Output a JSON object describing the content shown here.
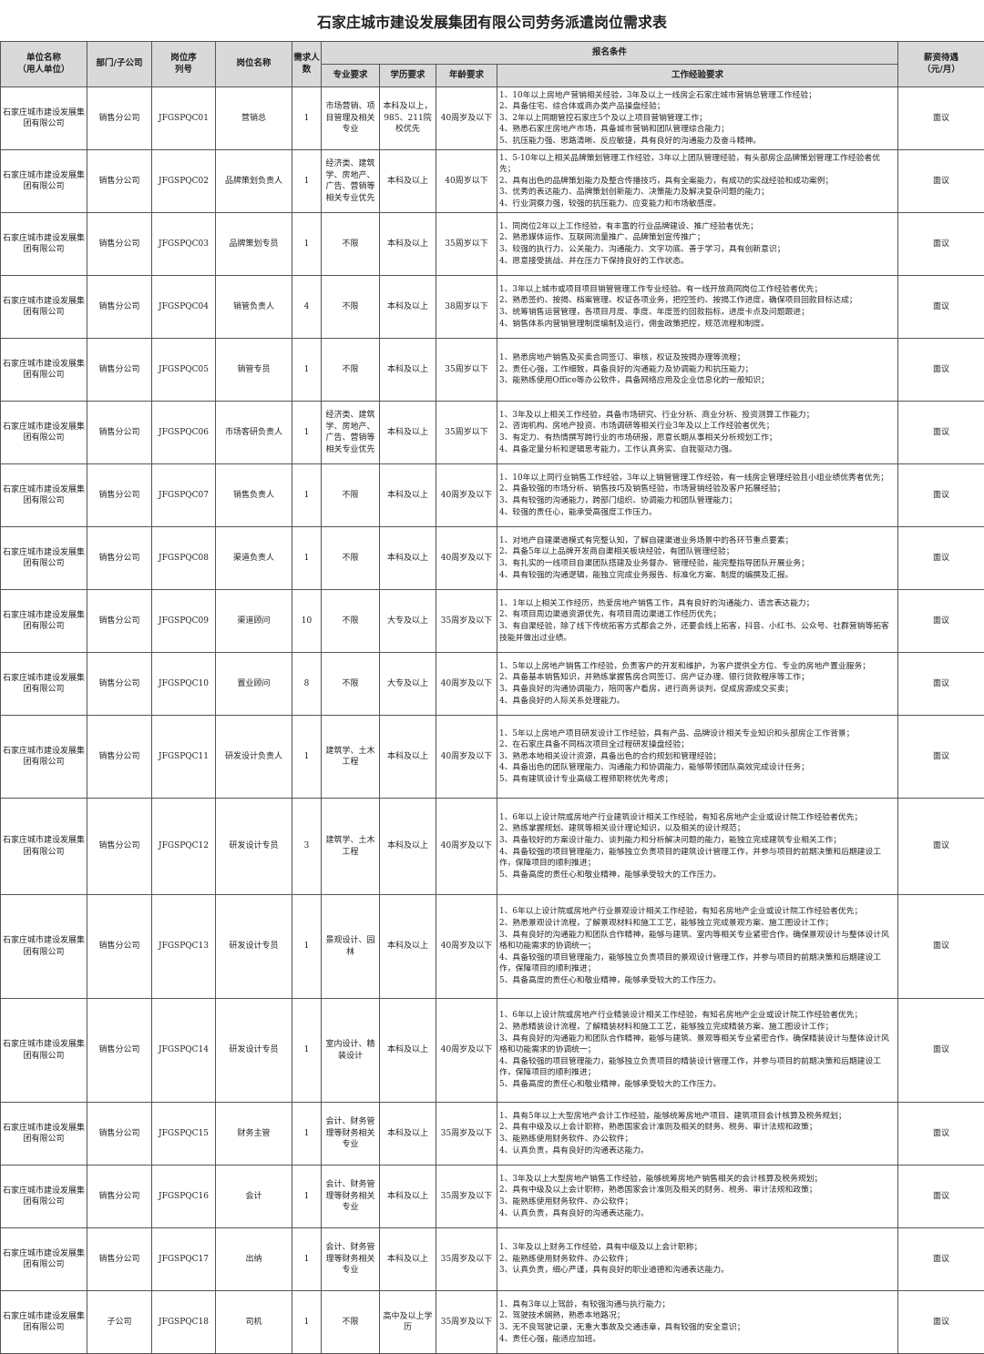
{
  "title": "石家庄城市建设发展集团有限公司劳务派遣岗位需求表",
  "headers": {
    "unit": "单位名称\n（用人单位）",
    "dept": "部门/子公司",
    "code": "岗位序\n列号",
    "position": "岗位名称",
    "count": "需求人\n数",
    "conditions": "报名条件",
    "major": "专业要求",
    "edu": "学历要求",
    "age": "年龄要求",
    "exp": "工作经验要求",
    "salary": "薪资待遇\n（元/月）"
  },
  "rows": [
    {
      "unit": "石家庄城市建设发展集团有限公司",
      "dept": "销售分公司",
      "code": "JFGSPQC01",
      "position": "营销总",
      "count": "1",
      "major": "市场营销、项目管理及相关专业",
      "edu": "本科及以上，985、211院校优先",
      "age": "40周岁及以下",
      "salary": "面议",
      "exp": [
        "1、10年以上房地产营销相关经验，3年及以上一线房企石家庄城市营销总管理工作经验；",
        "2、具备住宅、综合体或商办类产品操盘经验；",
        "3、2年以上同期管控石家庄5个及以上项目营销管理工作；",
        "4、熟悉石家庄房地产市场，具备城市营销和团队管理综合能力；",
        "5、抗压能力强、思路清晰、反应敏捷，具有良好的沟通能力及奋斗精神。"
      ]
    },
    {
      "unit": "石家庄城市建设发展集团有限公司",
      "dept": "销售分公司",
      "code": "JFGSPQC02",
      "position": "品牌策划负责人",
      "count": "1",
      "major": "经济类、建筑学、房地产、广告、营销等相关专业优先",
      "edu": "本科及以上",
      "age": "40周岁以下",
      "salary": "面议",
      "exp": [
        "1、5-10年以上相关品牌策划管理工作经验，3年以上团队管理经验，有头部房企品牌策划管理工作经验者优先；",
        "2、具有出色的品牌策划能力及整合传播技巧，具有全案能力，有成功的实战经验和成功案例；",
        "3、优秀的表达能力、品牌策划创新能力、决策能力及解决复杂问题的能力；",
        "4、行业洞察力强，较强的抗压能力、应变能力和市场敏感度。"
      ]
    },
    {
      "unit": "石家庄城市建设发展集团有限公司",
      "dept": "销售分公司",
      "code": "JFGSPQC03",
      "position": "品牌策划专员",
      "count": "1",
      "major": "不限",
      "edu": "本科及以上",
      "age": "35周岁以下",
      "salary": "面议",
      "exp": [
        "1、同岗位2年以上工作经验，有丰富的行业品牌建设、推广经验者优先；",
        "2、熟悉媒体运作、互联网流量推广、品牌策划宣传推广；",
        "3、较强的执行力、公关能力、沟通能力、文字功底、善于学习，具有创新意识；",
        "4、愿意接受挑战、并在压力下保持良好的工作状态。"
      ]
    },
    {
      "unit": "石家庄城市建设发展集团有限公司",
      "dept": "销售分公司",
      "code": "JFGSPQC04",
      "position": "销管负责人",
      "count": "4",
      "major": "不限",
      "edu": "本科及以上",
      "age": "38周岁以下",
      "salary": "面议",
      "exp": [
        "1、3年以上城市或项目项目销管管理工作专业经验。有一线开放商同岗位工作经验者优先；",
        "2、熟悉签约、按揭、档案管理、权证各项业务，把控签约、按揭工作进度，确保项目回款目标达成；",
        "3、统筹销售运营管理，各项目月度、季度、年度签约回款指标，进度卡点及问题跟进；",
        "4、销售体系内营销管理制度编制及运行，佣金政策把控，规范流程和制度。"
      ]
    },
    {
      "unit": "石家庄城市建设发展集团有限公司",
      "dept": "销售分公司",
      "code": "JFGSPQC05",
      "position": "销管专员",
      "count": "1",
      "major": "不限",
      "edu": "本科及以上",
      "age": "35周岁以下",
      "salary": "面议",
      "exp": [
        "1、熟悉房地产销售及买卖合同签订、审核，权证及按揭办理等流程；",
        "2、责任心强，工作细致，具备良好的沟通能力及协调能力和抗压能力；",
        "3、能熟练使用Office等办公软件，具备网络应用及企业信息化的一般知识；"
      ]
    },
    {
      "unit": "石家庄城市建设发展集团有限公司",
      "dept": "销售分公司",
      "code": "JFGSPQC06",
      "position": "市场客研负责人",
      "count": "1",
      "major": "经济类、建筑学、房地产、广告、营销等相关专业优先",
      "edu": "本科及以上",
      "age": "35周岁以下",
      "salary": "面议",
      "exp": [
        "1、3年及以上相关工作经验，具备市场研究、行业分析、商业分析、投资测算工作能力；",
        "2、咨询机构、房地产投资、市场调研等相关行业3年及以上工作经验者优先；",
        "3、有定力、有热情撰写跨行业的市场研报，愿意长期从事相关分析规划工作；",
        "4、具备定量分析和逻辑思考能力，工作认真务实、自我驱动力强。"
      ]
    },
    {
      "unit": "石家庄城市建设发展集团有限公司",
      "dept": "销售分公司",
      "code": "JFGSPQC07",
      "position": "销售负责人",
      "count": "1",
      "major": "不限",
      "edu": "本科及以上",
      "age": "40周岁及以下",
      "salary": "面议",
      "exp": [
        "1、10年以上同行业销售工作经验，3年以上销管管理工作经验，有一线房企管理经验且小组业绩优秀者优先；",
        "2、具备较强的市场分析、销售技巧及销售经验，市场营销经验及客户拓展经验；",
        "3、具有较强的沟通能力，跨部门组织、协调能力和团队管理能力；",
        "4、较强的责任心，能承受高强度工作压力。"
      ]
    },
    {
      "unit": "石家庄城市建设发展集团有限公司",
      "dept": "销售分公司",
      "code": "JFGSPQC08",
      "position": "渠道负责人",
      "count": "1",
      "major": "不限",
      "edu": "本科及以上",
      "age": "40周岁及以下",
      "salary": "面议",
      "exp": [
        "1、对地产自建渠道模式有完整认知，了解自建渠道业务场景中的各环节重点要素；",
        "2、具备5年以上品牌开发商自渠相关板块经验，有团队管理经验；",
        "3、有扎实的一线项目自渠团队搭建及业务督办、管理经验，能完整指导团队开展业务；",
        "4、具有较强的沟通逻辑，能独立完成业务报告、标准化方案、制度的编撰及汇报。"
      ]
    },
    {
      "unit": "石家庄城市建设发展集团有限公司",
      "dept": "销售分公司",
      "code": "JFGSPQC09",
      "position": "渠道顾问",
      "count": "10",
      "major": "不限",
      "edu": "大专及以上",
      "age": "35周岁及以下",
      "salary": "面议",
      "exp": [
        "1、1年以上相关工作经历，热爱房地产销售工作，具有良好的沟通能力、语言表达能力；",
        "2、有项目周边渠道资源优先，有项目周边渠道工作经历优先；",
        "3、有自渠经验，除了线下传统拓客方式都会之外，还要会线上拓客，抖音、小红书、公众号、社群营销等拓客技能并做出过业绩。"
      ]
    },
    {
      "unit": "石家庄城市建设发展集团有限公司",
      "dept": "销售分公司",
      "code": "JFGSPQC10",
      "position": "置业顾问",
      "count": "8",
      "major": "不限",
      "edu": "大专及以上",
      "age": "40周岁及以下",
      "salary": "面议",
      "exp": [
        "1、5年以上房地产销售工作经验，负责客户的开发和维护，为客户提供全方位、专业的房地产置业服务；",
        "2、具备基本销售知识，并熟练掌握售房合同签订、房产证办理、银行贷款程序等工作；",
        "3、具备良好的沟通协调能力，陪同客户看房，进行商务谈判，促成房源成交买卖；",
        "4、具备良好的人际关系处理能力。"
      ]
    },
    {
      "unit": "石家庄城市建设发展集团有限公司",
      "dept": "销售分公司",
      "code": "JFGSPQC11",
      "position": "研发设计负责人",
      "count": "1",
      "major": "建筑学、土木工程",
      "edu": "本科及以上",
      "age": "40周岁及以下",
      "salary": "面议",
      "exp": [
        "1、5年以上房地产项目研发设计工作经验，具有产品、品牌设计相关专业知识和头部房企工作背景；",
        "2、在石家庄具备不同档次项目全过程研发操盘经验；",
        "3、熟悉本地相关设计资源，具备出色的合约规划和管理经验；",
        "4、具备出色的团队管理能力、沟通能力和协调能力，能够带领团队高效完成设计任务；",
        "5、具有建筑设计专业高级工程师职称优先考虑；"
      ]
    },
    {
      "unit": "石家庄城市建设发展集团有限公司",
      "dept": "销售分公司",
      "code": "JFGSPQC12",
      "position": "研发设计专员",
      "count": "3",
      "major": "建筑学、土木工程",
      "edu": "本科及以上",
      "age": "40周岁及以下",
      "salary": "面议",
      "exp": [
        "1、6年以上设计院或房地产行业建筑设计相关工作经验，有知名房地产企业或设计院工作经验者优先；",
        "2、熟练掌握规划、建筑等相关设计理论知识，以及相关的设计规范；",
        "3、具备较好的方案设计能力、谈判能力和分析解决问题的能力，能独立完成建筑专业相关工作；",
        "4、具备较强的项目管理能力，能够独立负责项目的建筑设计管理工作，并参与项目的前期决策和后期建设工作，保障项目的顺利推进；",
        "5、具备高度的责任心和敬业精神，能够承受较大的工作压力。"
      ]
    },
    {
      "unit": "石家庄城市建设发展集团有限公司",
      "dept": "销售分公司",
      "code": "JFGSPQC13",
      "position": "研发设计专员",
      "count": "1",
      "major": "景观设计、园林",
      "edu": "本科及以上",
      "age": "40周岁及以下",
      "salary": "面议",
      "exp": [
        "1、6年以上设计院或房地产行业景观设计相关工作经验，有知名房地产企业或设计院工作经验者优先；",
        "2、熟悉景观设计流程，了解景观材料和施工工艺，能够独立完成景观方案、施工图设计工作；",
        "3、具有良好的沟通能力和团队合作精神，能够与建筑、室内等相关专业紧密合作，确保景观设计与整体设计风格和功能需求的协调统一；",
        "4、具备较强的项目管理能力，能够独立负责项目的景观设计管理工作，并参与项目的前期决策和后期建设工作，保障项目的顺利推进；",
        "5、具备高度的责任心和敬业精神，能够承受较大的工作压力。"
      ]
    },
    {
      "unit": "石家庄城市建设发展集团有限公司",
      "dept": "销售分公司",
      "code": "JFGSPQC14",
      "position": "研发设计专员",
      "count": "1",
      "major": "室内设计、精装设计",
      "edu": "本科及以上",
      "age": "40周岁及以下",
      "salary": "面议",
      "exp": [
        "1、6年以上设计院或房地产行业精装设计相关工作经验，有知名房地产企业或设计院工作经验者优先；",
        "2、熟悉精装设计流程，了解精装材料和施工工艺，能够独立完成精装方案、施工图设计工作；",
        "3、具有良好的沟通能力和团队合作精神，能够与建筑、景观等相关专业紧密合作，确保精装设计与整体设计风格和功能需求的协调统一；",
        "4、具备较强的项目管理能力，能够独立负责项目的精装设计管理工作，并参与项目的前期决策和后期建设工作，保障项目的顺利推进；",
        "5、具备高度的责任心和敬业精神，能够承受较大的工作压力。"
      ]
    },
    {
      "unit": "石家庄城市建设发展集团有限公司",
      "dept": "销售分公司",
      "code": "JFGSPQC15",
      "position": "财务主管",
      "count": "1",
      "major": "会计、财务管理等财务相关专业",
      "edu": "本科及以上",
      "age": "35周岁及以下",
      "salary": "面议",
      "exp": [
        "1、具有5年以上大型房地产会计工作经验，能够统筹房地产项目、建筑项目会计核算及税务规划；",
        "2、具有中级及以上会计职称，熟悉国家会计准则及相关的财务、税务、审计法规和政策；",
        "3、能熟练使用财务软件、办公软件；",
        "4、认真负责，具有良好的沟通表达能力。"
      ]
    },
    {
      "unit": "石家庄城市建设发展集团有限公司",
      "dept": "销售分公司",
      "code": "JFGSPQC16",
      "position": "会计",
      "count": "1",
      "major": "会计、财务管理等财务相关专业",
      "edu": "本科及以上",
      "age": "35周岁及以下",
      "salary": "面议",
      "exp": [
        "1、3年及以上大型房地产销售工作经验，能够统筹房地产销售相关的会计核算及税务规划；",
        "2、具有中级及以上会计职称，熟悉国家会计准则及相关的财务、税务、审计法规和政策；",
        "3、能熟练使用财务软件、办公软件；",
        "4、认真负责，具有良好的沟通表达能力。"
      ]
    },
    {
      "unit": "石家庄城市建设发展集团有限公司",
      "dept": "销售分公司",
      "code": "JFGSPQC17",
      "position": "出纳",
      "count": "1",
      "major": "会计、财务管理等财务相关专业",
      "edu": "本科及以上",
      "age": "35周岁及以下",
      "salary": "面议",
      "exp": [
        "1、3年及以上财务工作经验，具有中级及以上会计职称；",
        "2、能熟练使用财务软件、办公软件；",
        "3、认真负责，细心严谨，具有良好的职业道德和沟通表达能力。"
      ]
    },
    {
      "unit": "石家庄城市建设发展集团有限公司",
      "dept": "子公司",
      "code": "JFGSPQC18",
      "position": "司机",
      "count": "1",
      "major": "不限",
      "edu": "高中及以上学历",
      "age": "35周岁及以下",
      "salary": "面议",
      "exp": [
        "1、具有3年以上驾龄，有较强沟通与执行能力；",
        "2、驾驶技术娴熟，熟悉本地路况；",
        "3、无不良驾驶记录，无重大事故及交通违章，具有较强的安全意识；",
        "4、责任心强，能适应加班。"
      ]
    }
  ]
}
